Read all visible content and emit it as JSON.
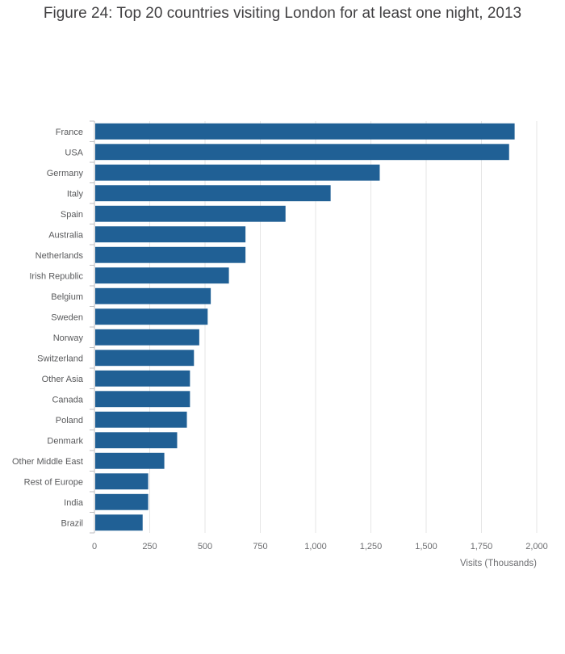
{
  "chart_data": {
    "type": "bar",
    "orientation": "horizontal",
    "title": "Figure 24: Top 20 countries visiting London for at least one night, 2013",
    "xlabel": "Visits (Thousands)",
    "ylabel": "",
    "xlim": [
      0,
      2000
    ],
    "x_ticks": [
      0,
      250,
      500,
      750,
      1000,
      1250,
      1500,
      1750,
      2000
    ],
    "x_tick_labels": [
      "0",
      "250",
      "500",
      "750",
      "1,000",
      "1,250",
      "1,500",
      "1,750",
      "2,000"
    ],
    "grid": true,
    "legend": "none",
    "bar_color": "#206095",
    "categories": [
      "France",
      "USA",
      "Germany",
      "Italy",
      "Spain",
      "Australia",
      "Netherlands",
      "Irish Republic",
      "Belgium",
      "Sweden",
      "Norway",
      "Switzerland",
      "Other Asia",
      "Canada",
      "Poland",
      "Denmark",
      "Other Middle East",
      "Rest of Europe",
      "India",
      "Brazil"
    ],
    "values": [
      1900,
      1875,
      1290,
      1068,
      864,
      683,
      683,
      608,
      526,
      512,
      474,
      450,
      432,
      432,
      418,
      374,
      316,
      243,
      243,
      218
    ]
  }
}
